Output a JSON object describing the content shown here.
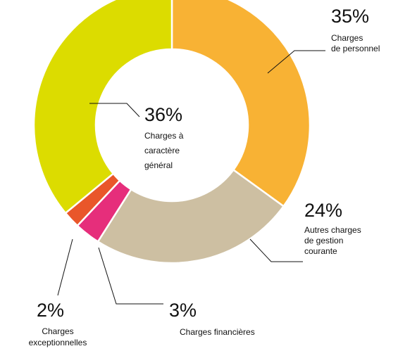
{
  "chart_data": {
    "type": "pie",
    "variant": "donut",
    "title": "",
    "start": "top",
    "direction": "clockwise",
    "slices": [
      {
        "value": 35,
        "percent_label": "35%",
        "label_lines": [
          "Charges",
          "de personnel"
        ],
        "color": "#F8B234"
      },
      {
        "value": 24,
        "percent_label": "24%",
        "label_lines": [
          "Autres charges",
          "de gestion",
          "courante"
        ],
        "color": "#CDBFA2"
      },
      {
        "value": 3,
        "percent_label": "3%",
        "label_lines": [
          "Charges financières"
        ],
        "color": "#E62E7B"
      },
      {
        "value": 2,
        "percent_label": "2%",
        "label_lines": [
          "Charges",
          "exceptionnelles"
        ],
        "color": "#E9562A"
      },
      {
        "value": 36,
        "percent_label": "36%",
        "label_lines": [
          "Charges à",
          "caractère",
          "général"
        ],
        "color": "#DCDC00"
      }
    ]
  }
}
